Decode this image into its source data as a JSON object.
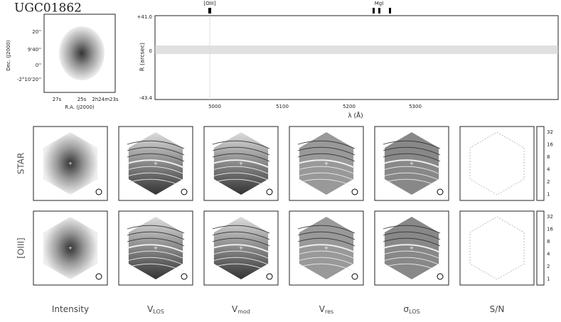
{
  "header": {
    "title": "UGC01862"
  },
  "thumbnail": {
    "ylabel": "Dec. (J2000)",
    "xlabel": "R.A. (J2000)",
    "yticks": [
      "20''",
      "9'40''",
      "0''",
      "-2°10'20''"
    ],
    "xticks": [
      "27s",
      "25s",
      "2h24m23s"
    ]
  },
  "spectrum": {
    "lines": [
      "[OIII]",
      "MgI"
    ],
    "ylabel": "R (arcsec)",
    "yticks": [
      "+41.0",
      "0",
      "-43.4"
    ],
    "xlabel": "λ (Å)",
    "xticks": [
      "5000",
      "5100",
      "5200",
      "5300"
    ]
  },
  "rows": [
    "STAR",
    "[OIII]"
  ],
  "columns": [
    {
      "main": "Intensity"
    },
    {
      "main": "V",
      "sub": "LOS"
    },
    {
      "main": "V",
      "sub": "mod"
    },
    {
      "main": "V",
      "sub": "res"
    },
    {
      "main": "σ",
      "sub": "LOS"
    },
    {
      "main": "S/N"
    }
  ],
  "colorbar": [
    "32",
    "16",
    "8",
    "4",
    "2",
    "1"
  ]
}
